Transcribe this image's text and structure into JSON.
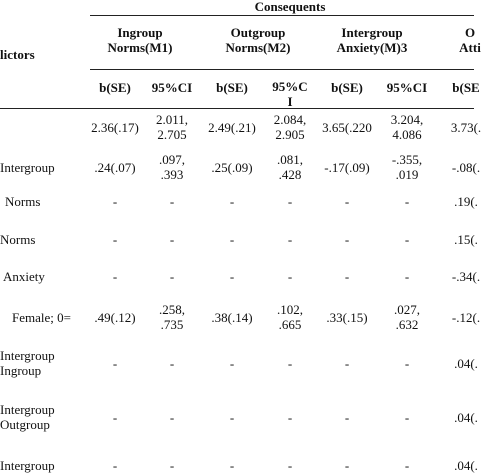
{
  "header": {
    "title": "Consequents",
    "predictor_label": "lictors"
  },
  "groups": [
    [
      "Ingroup",
      "Norms(M1)"
    ],
    [
      "Outgroup",
      "Norms(M2)"
    ],
    [
      "Intergroup",
      "Anxiety(M)3"
    ],
    [
      "O",
      "Atti"
    ]
  ],
  "subheaders": [
    [
      "b(SE)"
    ],
    [
      "95%CI"
    ],
    [
      "b(SE)"
    ],
    [
      "95%C",
      "I"
    ],
    [
      "b(SE)"
    ],
    [
      "95%CI"
    ],
    [
      "b(SE"
    ]
  ],
  "rows": [
    {
      "label": [],
      "cells": [
        [
          "2.36(.17)"
        ],
        [
          "2.011,",
          "2.705"
        ],
        [
          "2.49(.21)"
        ],
        [
          "2.084,",
          "2.905"
        ],
        [
          "3.65(.220"
        ],
        [
          "3.204,",
          "4.086"
        ],
        [
          "3.73(."
        ]
      ]
    },
    {
      "label": [
        "Intergroup"
      ],
      "cells": [
        [
          ".24(.07)"
        ],
        [
          ".097,",
          ".393"
        ],
        [
          ".25(.09)"
        ],
        [
          ".081,",
          ".428"
        ],
        [
          "-.17(.09)"
        ],
        [
          "-.355,",
          ".019"
        ],
        [
          "-.08(."
        ]
      ]
    },
    {
      "label": [
        "Norms"
      ],
      "cells": [
        [
          "-"
        ],
        [
          "-"
        ],
        [
          "-"
        ],
        [
          "-"
        ],
        [
          "-"
        ],
        [
          "-"
        ],
        [
          ".19(."
        ]
      ]
    },
    {
      "label": [
        "Norms"
      ],
      "cells": [
        [
          "-"
        ],
        [
          "-"
        ],
        [
          "-"
        ],
        [
          "-"
        ],
        [
          "-"
        ],
        [
          "-"
        ],
        [
          ".15(."
        ]
      ]
    },
    {
      "label": [
        "Anxiety"
      ],
      "cells": [
        [
          "-"
        ],
        [
          "-"
        ],
        [
          "-"
        ],
        [
          "-"
        ],
        [
          "-"
        ],
        [
          "-"
        ],
        [
          "-.34(."
        ]
      ]
    },
    {
      "label": [
        "Female; 0="
      ],
      "cells": [
        [
          ".49(.12)"
        ],
        [
          ".258,",
          ".735"
        ],
        [
          ".38(.14)"
        ],
        [
          ".102,",
          ".665"
        ],
        [
          ".33(.15)"
        ],
        [
          ".027,",
          ".632"
        ],
        [
          "-.12(."
        ]
      ]
    },
    {
      "label": [
        "Intergroup",
        "Ingroup"
      ],
      "cells": [
        [
          "-"
        ],
        [
          "-"
        ],
        [
          "-"
        ],
        [
          "-"
        ],
        [
          "-"
        ],
        [
          "-"
        ],
        [
          ".04(."
        ]
      ]
    },
    {
      "label": [
        "Intergroup",
        "Outgroup"
      ],
      "cells": [
        [
          "-"
        ],
        [
          "-"
        ],
        [
          "-"
        ],
        [
          "-"
        ],
        [
          "-"
        ],
        [
          "-"
        ],
        [
          ".04(."
        ]
      ]
    },
    {
      "label": [
        "Intergroup"
      ],
      "cells": [
        [
          "-"
        ],
        [
          "-"
        ],
        [
          "-"
        ],
        [
          "-"
        ],
        [
          "-"
        ],
        [
          "-"
        ],
        [
          ".04(."
        ]
      ]
    }
  ]
}
